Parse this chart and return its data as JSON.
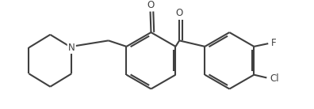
{
  "bg_color": "#ffffff",
  "line_color": "#404040",
  "line_width": 1.5,
  "font_size": 8.5,
  "figsize": [
    3.96,
    1.38
  ],
  "dpi": 100,
  "xlim": [
    0,
    396
  ],
  "ylim": [
    0,
    138
  ]
}
